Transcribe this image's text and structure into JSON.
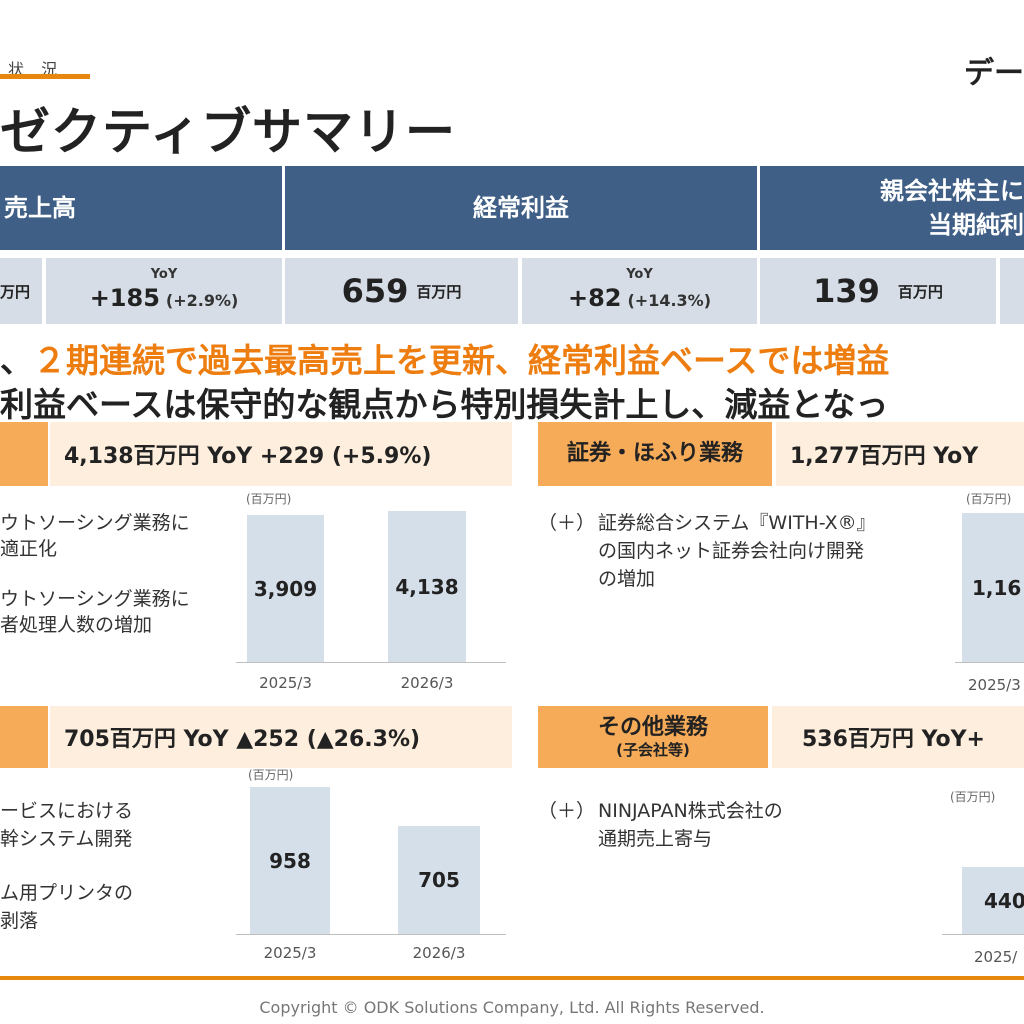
{
  "header": {
    "section_label": "状 況",
    "data_label": "デー",
    "page_title": "ゼクティブサマリー"
  },
  "kpi": {
    "sales": {
      "title": "売上高",
      "unit_partial": "万円",
      "yoy_label": "YoY",
      "yoy_value": "+185",
      "yoy_pct": "(+2.9%)"
    },
    "ordinary": {
      "title": "経常利益",
      "value": "659",
      "unit": "百万円",
      "yoy_label": "YoY",
      "yoy_value": "+82",
      "yoy_pct": "(+14.3%)"
    },
    "net": {
      "title_line1": "親会社株主に",
      "title_line2": "当期純利",
      "value": "139",
      "unit": "百万円"
    }
  },
  "headline": {
    "line1_prefix": "、",
    "line1_highlight": "２期連続で過去最高売上を更新、経常利益ベースでは増益",
    "line2": "利益ベースは保守的な観点から特別損失計上し、減益となっ"
  },
  "segments": {
    "s1": {
      "value": "4,138百万円 YoY +229 (+5.9%)",
      "bullets": [
        "ウトソーシング業務に",
        "適正化",
        "ウトソーシング業務に",
        "者処理人数の増加"
      ],
      "chart_unit": "(百万円)"
    },
    "s2": {
      "name": "証券・ほふり業務",
      "value": "1,277百万円 YoY",
      "bullet_marker": "（＋）",
      "bullets": [
        "証券総合システム『WITH-X®』",
        "の国内ネット証券会社向け開発",
        "の増加"
      ],
      "chart_unit": "(百万円)"
    },
    "s3": {
      "value": "705百万円 YoY ▲252 (▲26.3%)",
      "bullets": [
        "ービスにおける",
        "幹システム開発",
        "ム用プリンタの",
        "剥落"
      ],
      "chart_unit": "(百万円)"
    },
    "s4": {
      "name": "その他業務",
      "name_sub": "(子会社等)",
      "value": "536百万円  YoY+",
      "bullet_marker": "（＋）",
      "bullets": [
        "NINJAPAN株式会社の",
        "通期売上寄与"
      ],
      "chart_unit": "(百万円)"
    }
  },
  "chart_data": [
    {
      "type": "bar",
      "categories": [
        "2025/3",
        "2026/3"
      ],
      "values": [
        3909,
        4138
      ],
      "value_labels": [
        "3,909",
        "4,138"
      ],
      "ylabel": "(百万円)"
    },
    {
      "type": "bar",
      "categories": [
        "2025/3"
      ],
      "values": [
        1164
      ],
      "value_labels": [
        "1,16"
      ],
      "ylabel": "(百万円)"
    },
    {
      "type": "bar",
      "categories": [
        "2025/3",
        "2026/3"
      ],
      "values": [
        958,
        705
      ],
      "value_labels": [
        "958",
        "705"
      ],
      "ylabel": "(百万円)"
    },
    {
      "type": "bar",
      "categories": [
        "2025/"
      ],
      "values": [
        440
      ],
      "value_labels": [
        "440"
      ],
      "ylabel": "(百万円)"
    }
  ],
  "footer": {
    "copyright": "Copyright © ODK Solutions Company, Ltd. All Rights Reserved."
  },
  "colors": {
    "accent": "#ee7d10",
    "header_blue": "#3f5f86",
    "bar": "#d5dfea",
    "segment_name_bg": "#f6ab59",
    "segment_value_bg": "#fdeedd"
  }
}
